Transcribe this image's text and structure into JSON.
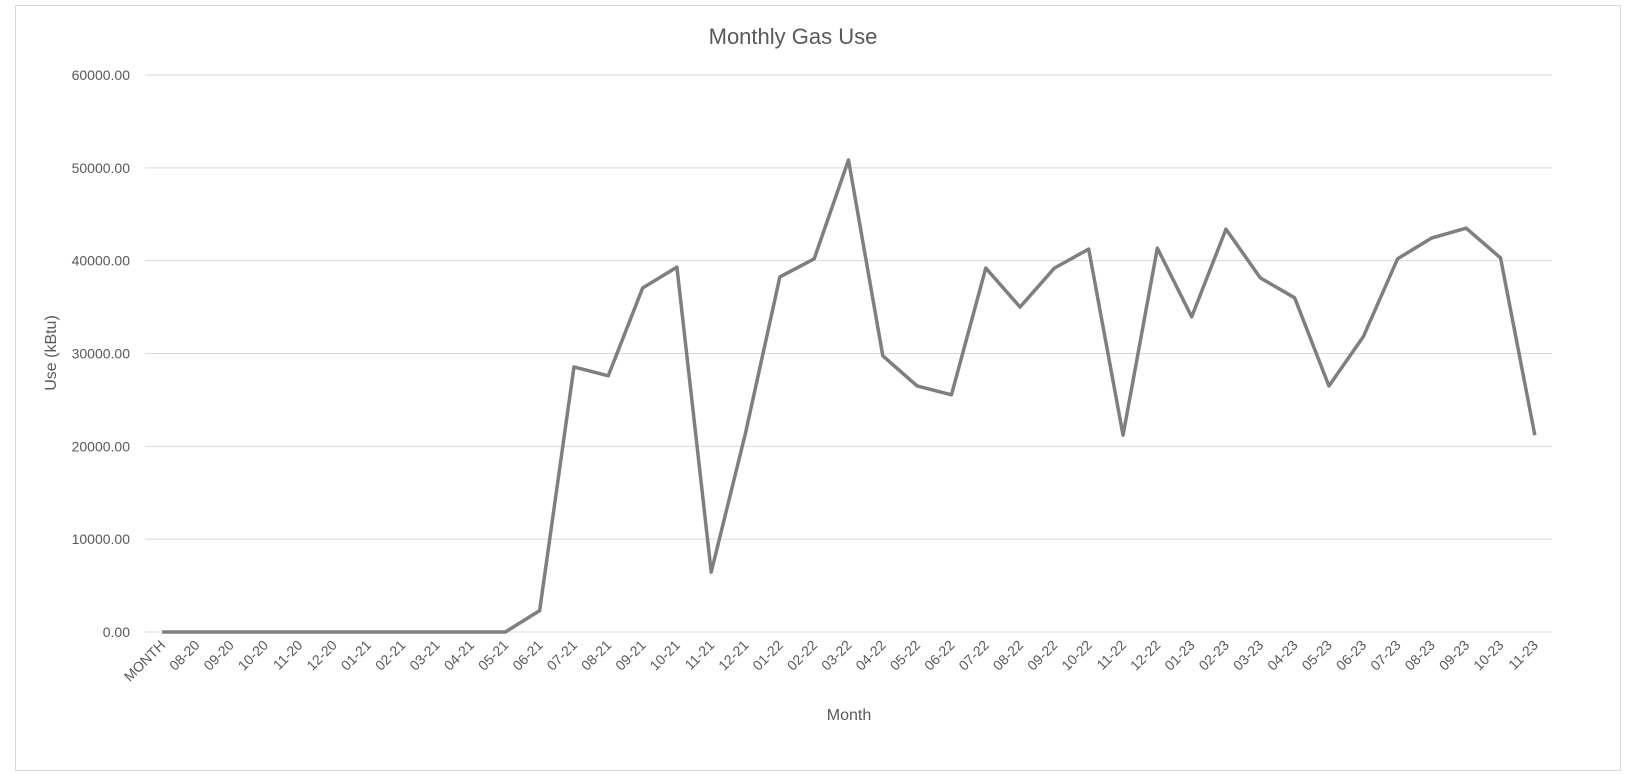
{
  "chart_data": {
    "type": "line",
    "title": "Monthly Gas Use",
    "x_label": "Month",
    "y_label": "Use (kBtu)",
    "categories": [
      "MONTH",
      "08-20",
      "09-20",
      "10-20",
      "11-20",
      "12-20",
      "01-21",
      "02-21",
      "03-21",
      "04-21",
      "05-21",
      "06-21",
      "07-21",
      "08-21",
      "09-21",
      "10-21",
      "11-21",
      "12-21",
      "01-22",
      "02-22",
      "03-22",
      "04-22",
      "05-22",
      "06-22",
      "07-22",
      "08-22",
      "09-22",
      "10-22",
      "11-22",
      "12-22",
      "01-23",
      "02-23",
      "03-23",
      "04-23",
      "05-23",
      "06-23",
      "07-23",
      "08-23",
      "09-23",
      "10-23",
      "11-23"
    ],
    "series": [
      {
        "name": "Use (kBtu)",
        "color": "#7f7f7f",
        "values": [
          0,
          0,
          0,
          0,
          0,
          0,
          0,
          0,
          0,
          0,
          0,
          2300,
          28550,
          27600,
          37050,
          39300,
          6450,
          21450,
          38250,
          40200,
          50850,
          29750,
          26500,
          25550,
          39200,
          35000,
          39200,
          41250,
          21200,
          41350,
          33950,
          43400,
          38150,
          36000,
          26500,
          31800,
          40200,
          42450,
          43500,
          40300,
          21200
        ]
      }
    ],
    "ylim": [
      0,
      60000
    ],
    "yticks": [
      {
        "value": 0,
        "label": "0.00"
      },
      {
        "value": 10000,
        "label": "10000.00"
      },
      {
        "value": 20000,
        "label": "20000.00"
      },
      {
        "value": 30000,
        "label": "30000.00"
      },
      {
        "value": 40000,
        "label": "40000.00"
      },
      {
        "value": 50000,
        "label": "50000.00"
      },
      {
        "value": 60000,
        "label": "60000.00"
      }
    ],
    "grid": true
  }
}
